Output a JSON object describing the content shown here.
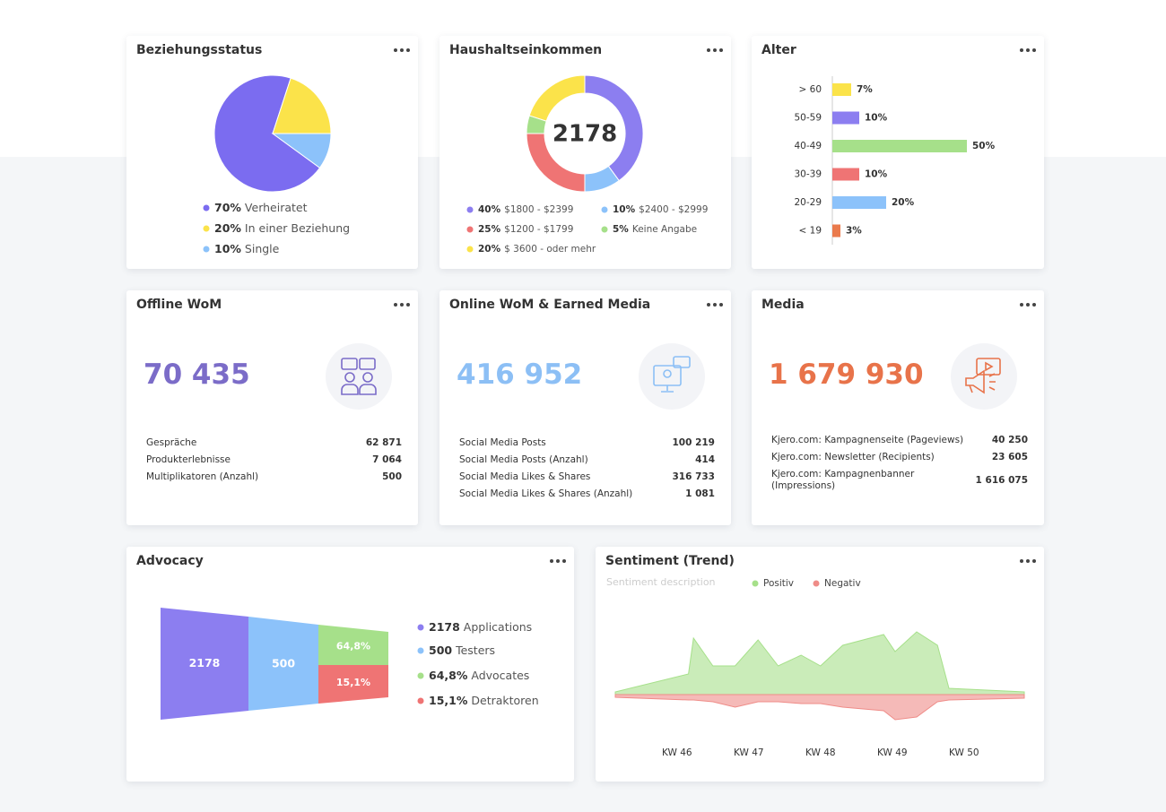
{
  "relationship": {
    "title": "Beziehungsstatus",
    "type": "pie",
    "values": [
      70,
      20,
      10
    ],
    "value_labels": [
      "70%",
      "20%",
      "10%"
    ],
    "labels": [
      "Verheiratet",
      "In einer Beziehung",
      "Single"
    ],
    "colors": [
      "#7b6cf0",
      "#fbe34a",
      "#8cc2fa"
    ]
  },
  "income": {
    "title": "Haushaltseinkommen",
    "type": "donut",
    "center": "2178",
    "values": [
      40,
      10,
      25,
      5,
      20
    ],
    "value_labels": [
      "40%",
      "10%",
      "25%",
      "5%",
      "20%"
    ],
    "labels": [
      "$1800 - $2399",
      "$2400 - $2999",
      "$1200 - $1799",
      "Keine Angabe",
      "$ 3600 - oder mehr"
    ],
    "colors": [
      "#8c7ef0",
      "#8cc2fa",
      "#ef7474",
      "#a6e08a",
      "#fbe34a"
    ]
  },
  "age": {
    "title": "Alter",
    "type": "bar",
    "categories": [
      "> 60",
      "50-59",
      "40-49",
      "30-39",
      "20-29",
      "< 19"
    ],
    "values": [
      7,
      10,
      50,
      10,
      20,
      3
    ],
    "value_labels": [
      "7%",
      "10%",
      "50%",
      "10%",
      "20%",
      "3%"
    ],
    "colors": [
      "#fbe34a",
      "#8c7ef0",
      "#a6e08a",
      "#ef7474",
      "#8cc2fa",
      "#ea7a4c"
    ]
  },
  "offline": {
    "title": "Offline WoM",
    "value": "70 435",
    "color": "#7b6cc8",
    "rows": [
      [
        "Gespräche",
        "62 871"
      ],
      [
        "Produkterlebnisse",
        "7 064"
      ],
      [
        "Multiplikatoren (Anzahl)",
        "500"
      ]
    ]
  },
  "online": {
    "title": "Online WoM & Earned Media",
    "value": "416 952",
    "color": "#8cbff5",
    "rows": [
      [
        "Social Media Posts",
        "100 219"
      ],
      [
        "Social Media Posts (Anzahl)",
        "414"
      ],
      [
        "Social Media Likes & Shares",
        "316 733"
      ],
      [
        "Social Media Likes & Shares (Anzahl)",
        "1 081"
      ]
    ]
  },
  "media": {
    "title": "Media",
    "value": "1 679 930",
    "color": "#e8734a",
    "rows": [
      [
        "Kjero.com: Kampagnenseite (Pageviews)",
        "40 250"
      ],
      [
        "Kjero.com: Newsletter (Recipients)",
        "23 605"
      ],
      [
        "Kjero.com: Kampagnenbanner (Impressions)",
        "1 616 075"
      ]
    ]
  },
  "advocacy": {
    "title": "Advocacy",
    "type": "funnel",
    "values": [
      2178,
      500,
      64.8,
      15.1
    ],
    "value_labels": [
      "2178",
      "500",
      "64,8%",
      "15,1%"
    ],
    "labels": [
      "Applications",
      "Testers",
      "Advocates",
      "Detraktoren"
    ],
    "colors": [
      "#8c7ef0",
      "#8cc2fa",
      "#a6e08a",
      "#ef7474"
    ]
  },
  "sentiment": {
    "title": "Sentiment (Trend)",
    "subtitle": "Sentiment description",
    "type": "area",
    "x": [
      45.14,
      46.16,
      46.23,
      46.5,
      46.81,
      47.13,
      47.41,
      47.73,
      48.0,
      48.31,
      48.88,
      49.04,
      49.34,
      49.63,
      49.79,
      50.84
    ],
    "xlim": [
      45.14,
      50.84
    ],
    "xticks": [
      {
        "value": 46,
        "label": "KW 46"
      },
      {
        "value": 47,
        "label": "KW 47"
      },
      {
        "value": 48,
        "label": "KW 48"
      },
      {
        "value": 49,
        "label": "KW 49"
      },
      {
        "value": 50,
        "label": "KW 50"
      }
    ],
    "ylim": [
      -40,
      75
    ],
    "series": [
      {
        "name": "Positiv",
        "color": "#a6e08a",
        "values": [
          3,
          23,
          63,
          32,
          32,
          61,
          32,
          44,
          32,
          55,
          67,
          48,
          70,
          55,
          7,
          3
        ]
      },
      {
        "name": "Negativ",
        "color": "#ef8c88",
        "values": [
          -3,
          -6,
          -6,
          -8,
          -14,
          -8,
          -8,
          -10,
          -10,
          -14,
          -18,
          -28,
          -25,
          -8,
          -6,
          -4
        ]
      }
    ]
  }
}
